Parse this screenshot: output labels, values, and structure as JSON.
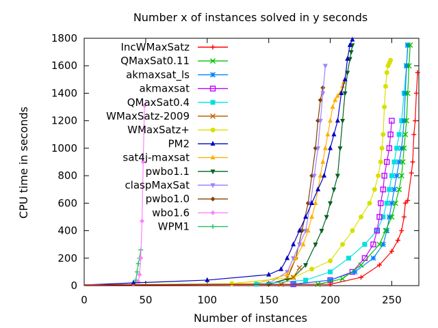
{
  "chart_data": {
    "type": "line",
    "title": "Number x of instances solved in y seconds",
    "xlabel": "Number of instances",
    "ylabel": "CPU time in seconds",
    "xlim": [
      0,
      272
    ],
    "ylim": [
      0,
      1800
    ],
    "xticks": [
      0,
      50,
      100,
      150,
      200,
      250
    ],
    "yticks": [
      0,
      200,
      400,
      600,
      800,
      1000,
      1200,
      1400,
      1600,
      1800
    ],
    "legend_position": "top-left inside plot",
    "series": [
      {
        "name": "IncWMaxSatz",
        "color": "#ff0000",
        "marker": "plus",
        "x": [
          0,
          200,
          225,
          240,
          250,
          255,
          258,
          260,
          261,
          263,
          266,
          267,
          268,
          269,
          270,
          271
        ],
        "y": [
          5,
          10,
          60,
          150,
          250,
          330,
          400,
          500,
          600,
          620,
          820,
          900,
          1100,
          1200,
          1400,
          1550
        ]
      },
      {
        "name": "QMaxSat0.11",
        "color": "#00c000",
        "marker": "x",
        "x": [
          0,
          190,
          210,
          225,
          240,
          245,
          250,
          253,
          256,
          258,
          259,
          260,
          261,
          262,
          263,
          264,
          265
        ],
        "y": [
          5,
          10,
          50,
          150,
          300,
          400,
          500,
          600,
          700,
          800,
          900,
          1000,
          1100,
          1200,
          1400,
          1600,
          1750
        ]
      },
      {
        "name": "akmaxsat_ls",
        "color": "#0080ff",
        "marker": "asterisk",
        "x": [
          0,
          170,
          200,
          220,
          235,
          243,
          246,
          248,
          250,
          252,
          254,
          256,
          258,
          260,
          261,
          262,
          263
        ],
        "y": [
          5,
          10,
          40,
          100,
          200,
          300,
          400,
          500,
          600,
          700,
          800,
          900,
          1000,
          1200,
          1400,
          1600,
          1750
        ]
      },
      {
        "name": "akmaxsat",
        "color": "#c000ff",
        "marker": "square",
        "x": [
          0,
          170,
          200,
          218,
          228,
          235,
          238,
          240,
          241,
          243,
          244,
          246,
          248,
          249,
          250
        ],
        "y": [
          5,
          10,
          40,
          100,
          200,
          300,
          400,
          500,
          600,
          700,
          800,
          900,
          1000,
          1100,
          1200
        ]
      },
      {
        "name": "QMaxSat0.4",
        "color": "#00e0e0",
        "marker": "filled-square",
        "x": [
          0,
          140,
          180,
          200,
          215,
          228,
          238,
          243,
          246,
          248,
          250,
          252,
          254,
          256,
          258,
          260,
          262,
          263
        ],
        "y": [
          5,
          10,
          40,
          100,
          200,
          300,
          400,
          500,
          600,
          700,
          800,
          900,
          1000,
          1100,
          1200,
          1400,
          1600,
          1750
        ]
      },
      {
        "name": "WMaxSatz-2009",
        "color": "#c06000",
        "marker": "x",
        "x": [
          0,
          160,
          170,
          175
        ],
        "y": [
          5,
          10,
          60,
          130
        ]
      },
      {
        "name": "WMaxSatz+",
        "color": "#d8e000",
        "marker": "filled-circle",
        "x": [
          0,
          120,
          170,
          185,
          200,
          210,
          218,
          225,
          232,
          236,
          239,
          241,
          242,
          243,
          244,
          245,
          246,
          247,
          248,
          249
        ],
        "y": [
          5,
          15,
          60,
          120,
          180,
          300,
          400,
          500,
          600,
          700,
          800,
          900,
          1000,
          1100,
          1300,
          1450,
          1550,
          1600,
          1620,
          1640
        ]
      },
      {
        "name": "PM2",
        "color": "#0000c0",
        "marker": "filled-triangle",
        "x": [
          0,
          40,
          100,
          150,
          160,
          165,
          170,
          175,
          180,
          185,
          190,
          195,
          200,
          203,
          206,
          209,
          212,
          214,
          216,
          218
        ],
        "y": [
          5,
          20,
          40,
          80,
          120,
          200,
          300,
          400,
          500,
          600,
          700,
          800,
          1000,
          1100,
          1200,
          1400,
          1500,
          1650,
          1750,
          1790
        ]
      },
      {
        "name": "sat4j-maxsat",
        "color": "#ffb000",
        "marker": "filled-triangle",
        "x": [
          0,
          140,
          165,
          172,
          178,
          182,
          185,
          188,
          190,
          192,
          194,
          196,
          198,
          200,
          202,
          204,
          206,
          208,
          210,
          211
        ],
        "y": [
          5,
          15,
          80,
          200,
          300,
          400,
          500,
          600,
          700,
          800,
          900,
          1000,
          1100,
          1200,
          1300,
          1350,
          1380,
          1400,
          1450,
          1480
        ]
      },
      {
        "name": "pwbo1.1",
        "color": "#006020",
        "marker": "filled-triangle-down",
        "x": [
          0,
          150,
          170,
          180,
          188,
          193,
          197,
          200,
          203,
          206,
          208,
          210,
          212,
          214,
          216,
          217,
          218
        ],
        "y": [
          5,
          10,
          60,
          150,
          300,
          400,
          500,
          600,
          700,
          800,
          1000,
          1200,
          1400,
          1550,
          1650,
          1700,
          1750
        ]
      },
      {
        "name": "claspMaxSat",
        "color": "#9f80ff",
        "marker": "filled-triangle-down",
        "x": [
          0,
          150,
          165,
          170,
          175,
          180,
          184,
          187,
          190,
          192,
          194,
          196
        ],
        "y": [
          5,
          15,
          100,
          200,
          300,
          400,
          600,
          800,
          1000,
          1200,
          1400,
          1600
        ]
      },
      {
        "name": "pwbo1.0",
        "color": "#804000",
        "marker": "filled-diamond",
        "x": [
          0,
          150,
          165,
          172,
          177,
          182,
          185,
          188,
          190,
          192,
          194
        ],
        "y": [
          5,
          10,
          50,
          200,
          400,
          600,
          800,
          1000,
          1200,
          1350,
          1440
        ]
      },
      {
        "name": "wbo1.6",
        "color": "#ff80ff",
        "marker": "filled-diamond",
        "x": [
          0,
          40,
          44,
          45,
          46,
          47,
          48,
          49
        ],
        "y": [
          5,
          10,
          30,
          80,
          200,
          470,
          900,
          1310
        ]
      },
      {
        "name": "WPM1",
        "color": "#20c060",
        "marker": "plus",
        "x": [
          0,
          40,
          42,
          43,
          44,
          45,
          46
        ],
        "y": [
          5,
          10,
          40,
          100,
          160,
          200,
          260
        ]
      }
    ]
  }
}
